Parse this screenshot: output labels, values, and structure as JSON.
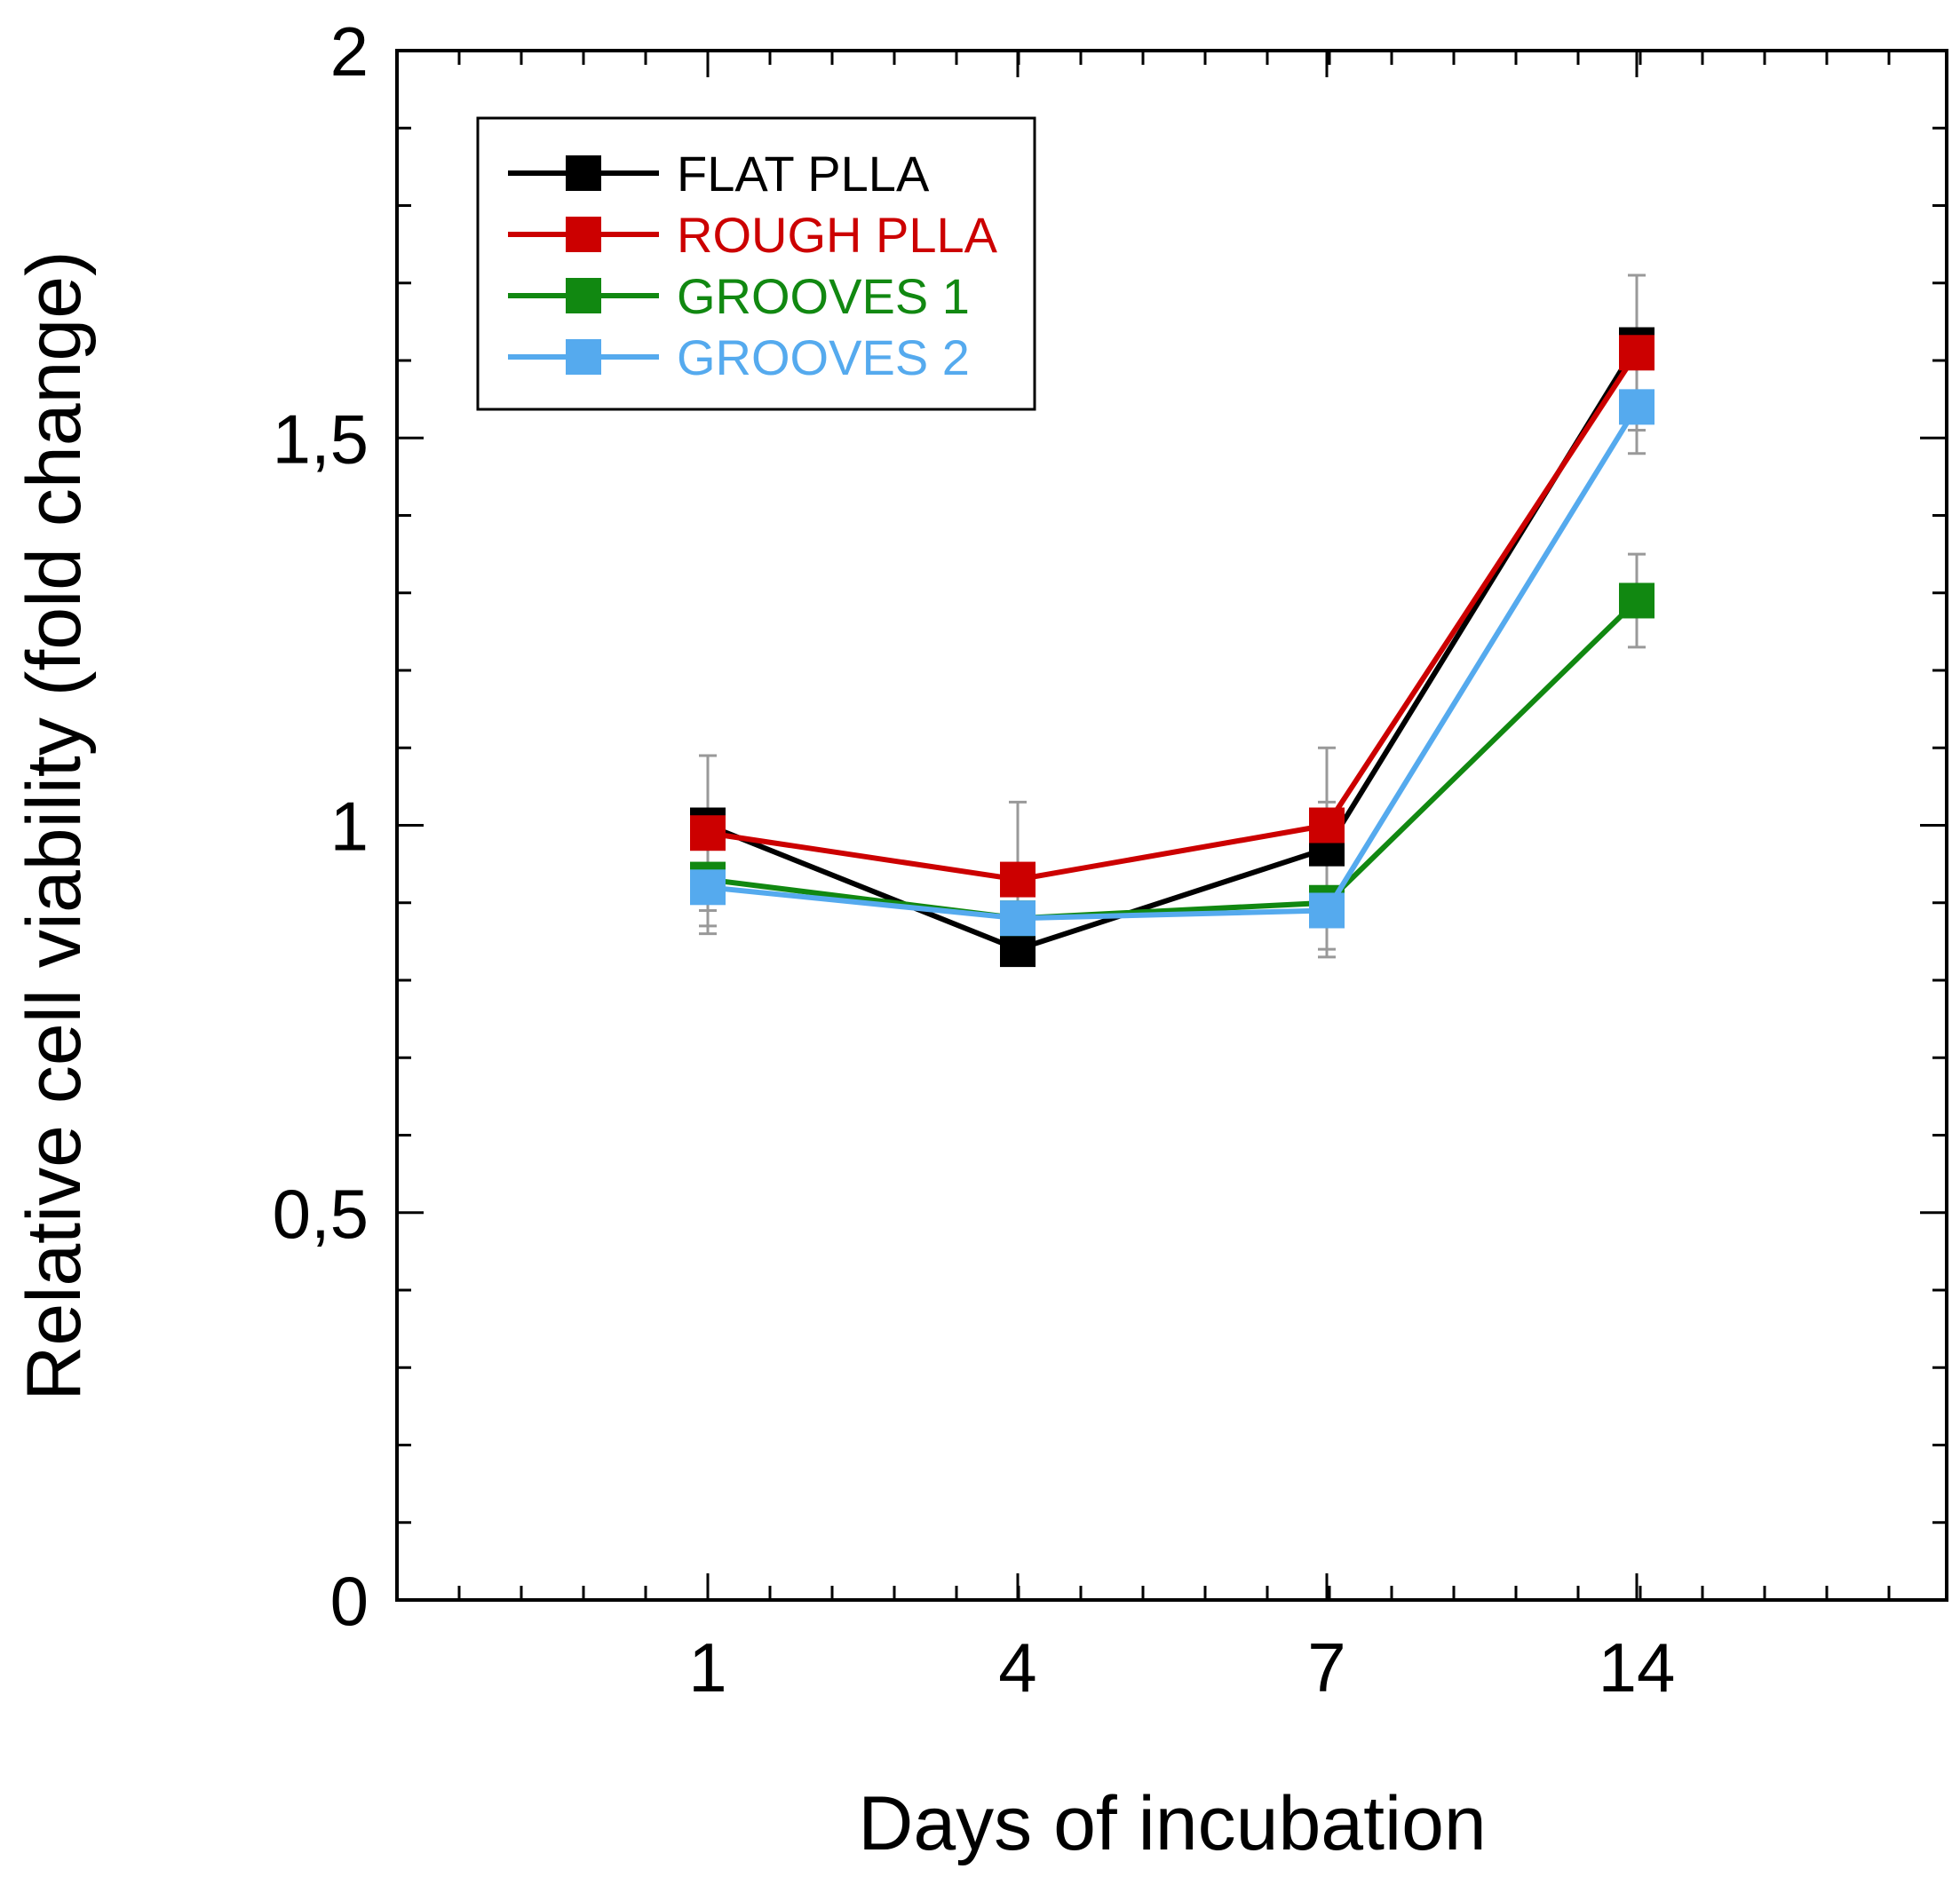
{
  "chart_data": {
    "type": "line",
    "title": "",
    "xlabel": "Days of incubation",
    "ylabel": "Relative cell viability (fold change)",
    "categories": [
      "1",
      "4",
      "7",
      "14"
    ],
    "ylim": [
      0,
      2
    ],
    "yticks": [
      {
        "value": 0,
        "label": "0"
      },
      {
        "value": 0.5,
        "label": "0,5"
      },
      {
        "value": 1,
        "label": "1"
      },
      {
        "value": 1.5,
        "label": "1,5"
      },
      {
        "value": 2,
        "label": "2"
      }
    ],
    "grid": false,
    "legend_position": "top-left",
    "series": [
      {
        "name": "FLAT PLLA",
        "color": "#000000",
        "text_color": "#000000",
        "values": [
          1.0,
          0.84,
          0.97,
          1.62
        ],
        "errors": [
          0.09,
          0,
          0.06,
          0
        ]
      },
      {
        "name": "ROUGH PLLA",
        "color": "#cc0000",
        "text_color": "#cc0000",
        "values": [
          0.99,
          0.93,
          1.0,
          1.61
        ],
        "errors": [
          0.1,
          0.1,
          0.1,
          0.1
        ]
      },
      {
        "name": "GROOVES 1",
        "color": "#118811",
        "text_color": "#118811",
        "values": [
          0.93,
          0.88,
          0.9,
          1.29
        ],
        "errors": [
          0.06,
          0,
          0.06,
          0.06
        ]
      },
      {
        "name": "GROOVES 2",
        "color": "#55aaee",
        "text_color": "#55aaee",
        "values": [
          0.92,
          0.88,
          0.89,
          1.54
        ],
        "errors": [
          0.06,
          0,
          0.06,
          0.06
        ]
      }
    ]
  }
}
